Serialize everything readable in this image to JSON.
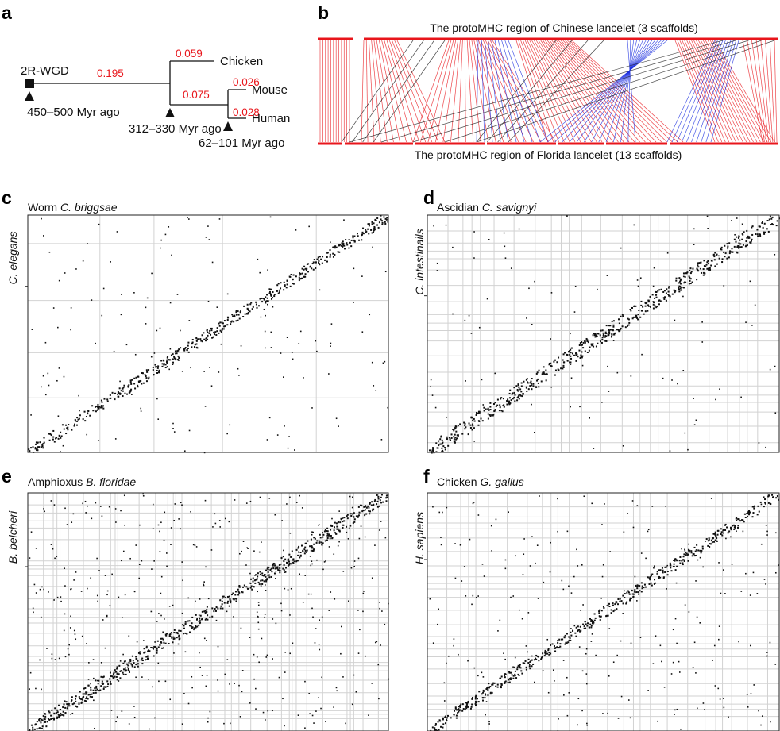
{
  "colors": {
    "red": "#e8151b",
    "blue": "#1c2ee0",
    "black": "#1a1a1a",
    "grid": "#d2d2d2",
    "dot": "#111111"
  },
  "panel_a": {
    "label": "a",
    "root_label": "2R-WGD",
    "root_time": "450–500 Myr ago",
    "node1_time": "312–330 Myr ago",
    "node2_time": "62–101 Myr ago",
    "branch_root": "0.195",
    "branch_chicken": "0.059",
    "branch_internal": "0.075",
    "branch_mouse": "0.026",
    "branch_human": "0.028",
    "taxa": [
      "Chicken",
      "Mouse",
      "Human"
    ]
  },
  "panel_b": {
    "label": "b",
    "top_caption": "The protoMHC region of Chinese lancelet (3 scaffolds)",
    "bottom_caption": "The protoMHC region of Florida lancelet (13 scaffolds)"
  },
  "panels": {
    "c": {
      "label": "c",
      "x_prefix": "Worm ",
      "x_species": "C.  briggsae",
      "y_species": "C. elegans"
    },
    "d": {
      "label": "d",
      "x_prefix": "Ascidian ",
      "x_species": "C. savignyi",
      "y_species": "C. intestinails"
    },
    "e": {
      "label": "e",
      "x_prefix": "Amphioxus ",
      "x_species": "B.  floridae",
      "y_species": "B. belcheri"
    },
    "f": {
      "label": "f",
      "x_prefix": "Chicken ",
      "x_species": "G. gallus",
      "y_species": "H. sapiens"
    }
  }
}
